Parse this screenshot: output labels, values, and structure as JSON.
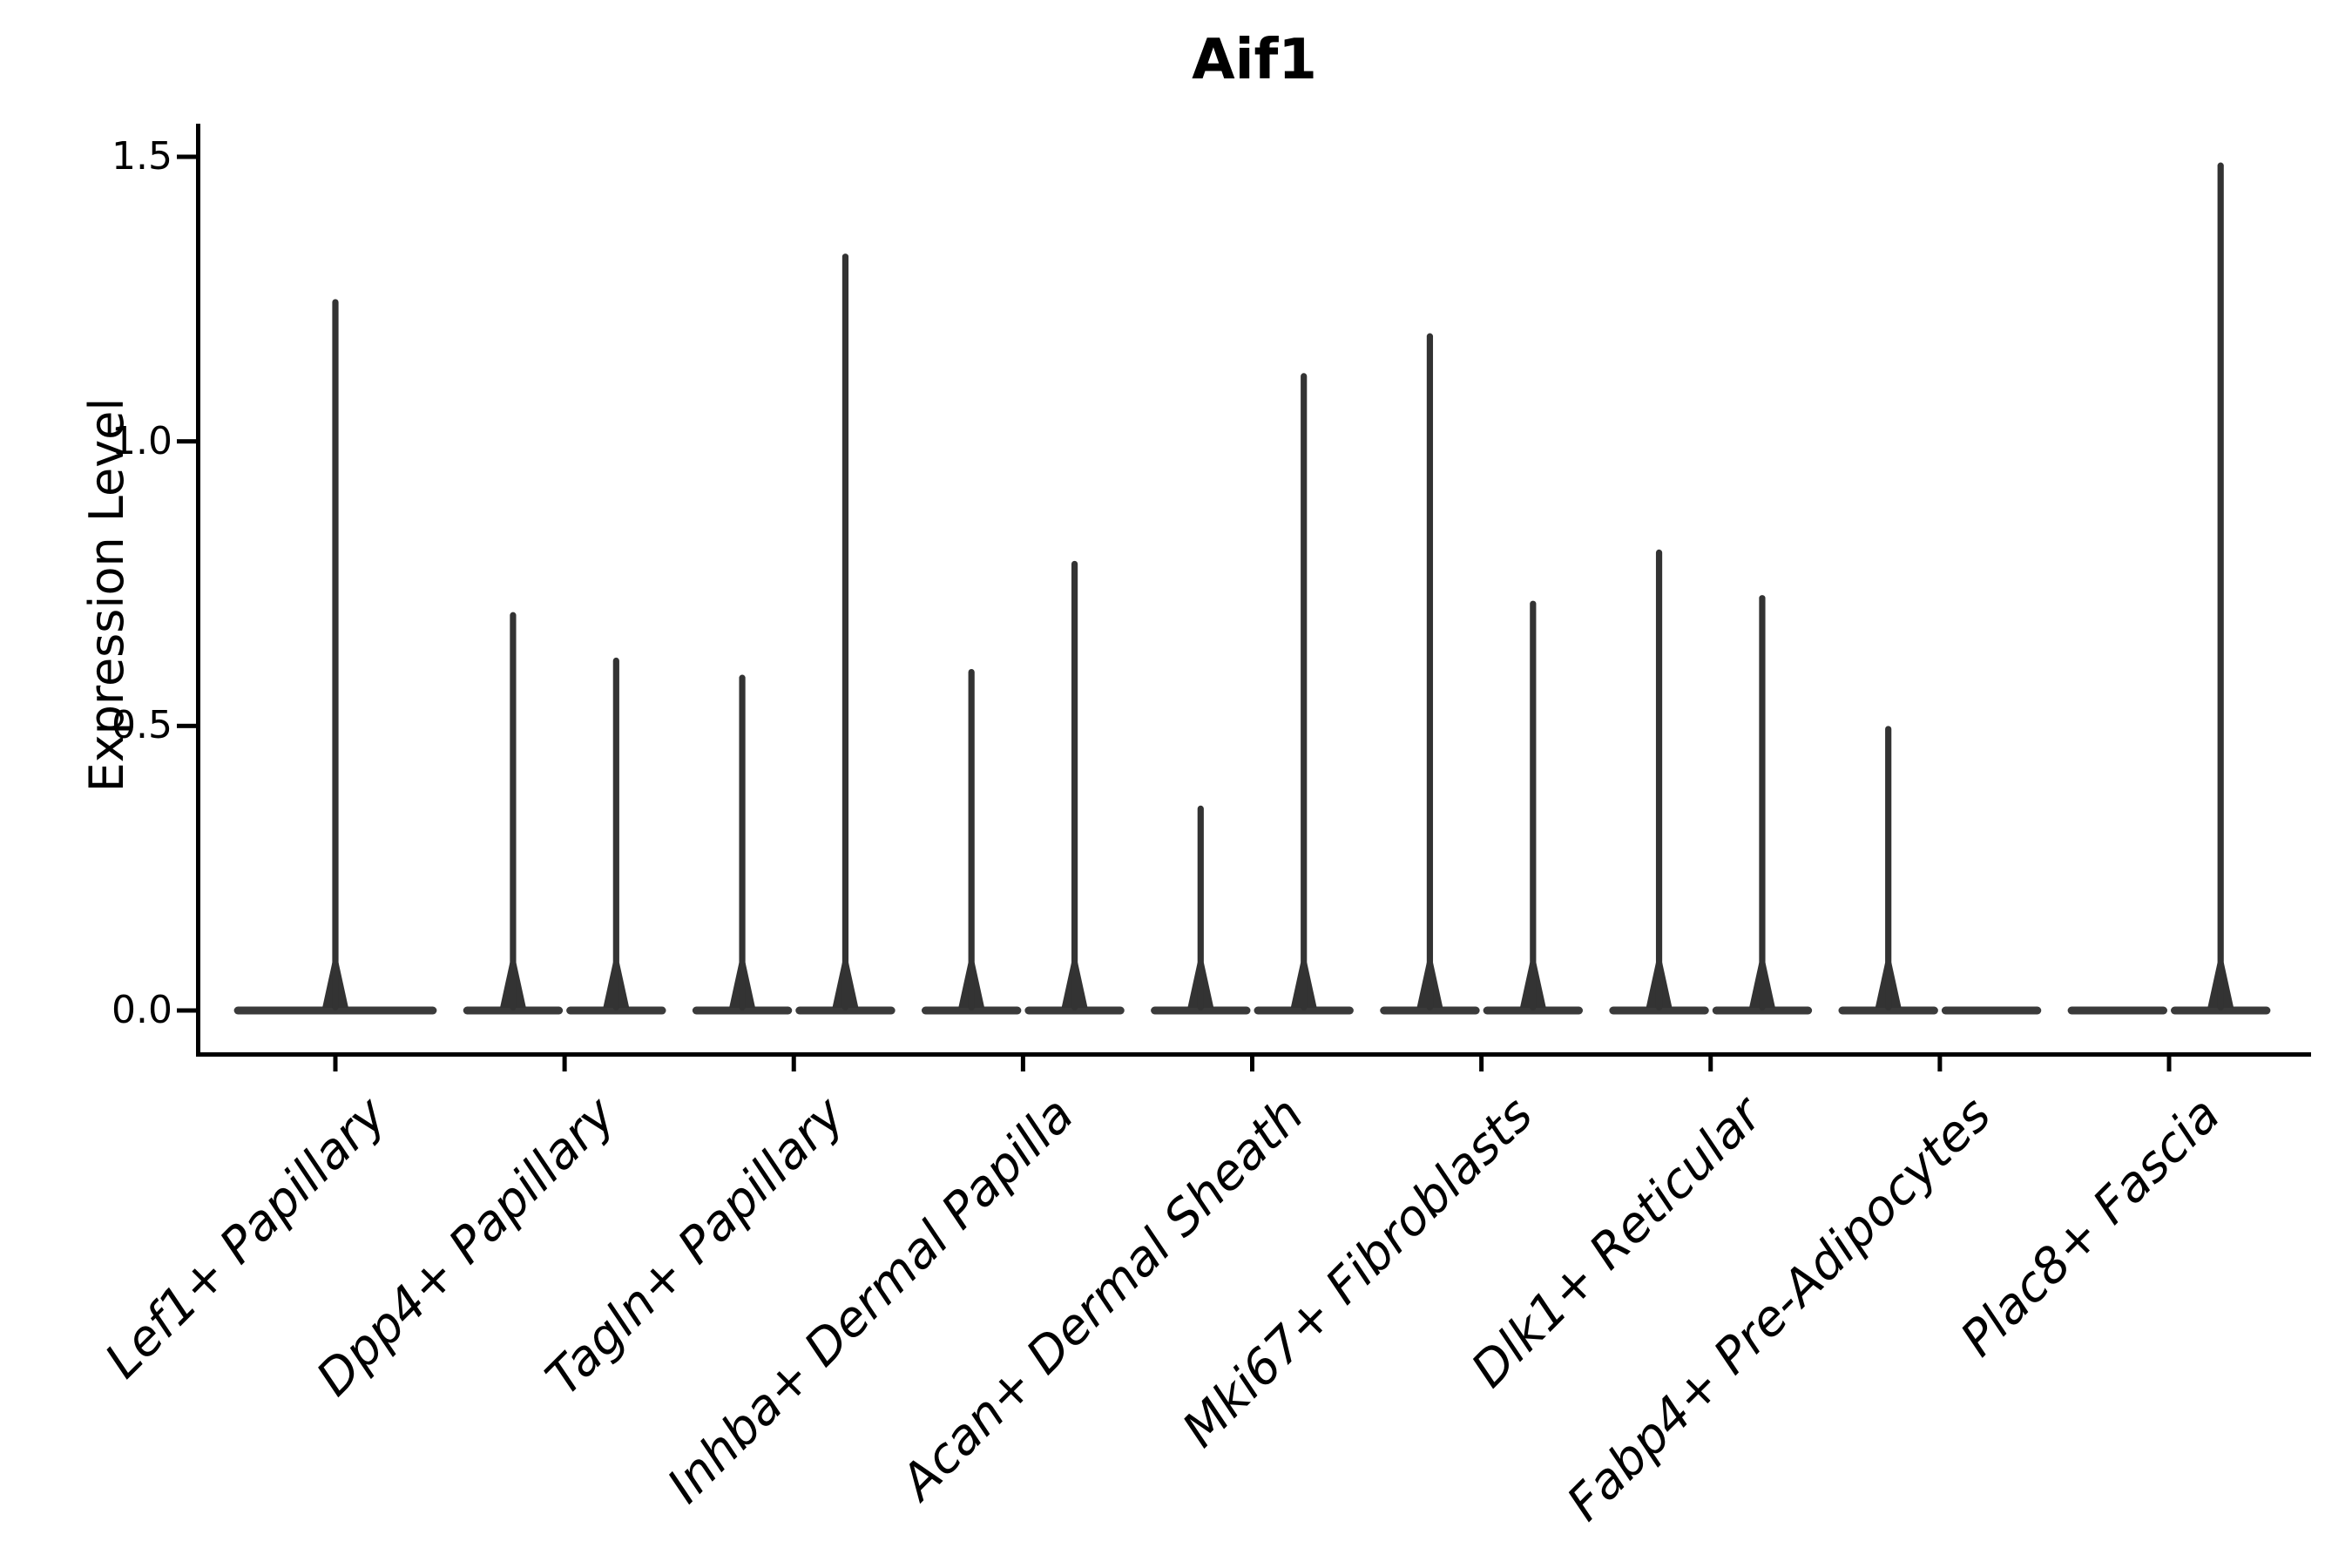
{
  "title": "Aif1",
  "chart_data": {
    "type": "violin",
    "title": "Aif1",
    "ylabel": "Expression Level",
    "xlabel": "",
    "ytick_labels": [
      "0.0",
      "0.5",
      "1.0",
      "1.5"
    ],
    "ytick_values": [
      0.0,
      0.5,
      1.0,
      1.5
    ],
    "ylim": [
      -0.07,
      1.56
    ],
    "grid": false,
    "legend": "none",
    "description": "Split violin plot; each violin is a flat density mass at 0 with a thin spike rising to the maximum expression value",
    "categories": [
      "Lef1+ Papillary",
      "Dpp4+ Papillary",
      "Tagln+ Papillary",
      "Inhba+ Dermal Papilla",
      "Acan+ Dermal Sheath",
      "Mki67+ Fibroblasts",
      "Dlk1+ Reticular",
      "Fabp4+ Pre-Adipocytes",
      "Plac8+ Fascia"
    ],
    "violins": [
      {
        "category": "Lef1+ Papillary",
        "groups": [
          {
            "side": "center",
            "max_expression": 1.25
          }
        ]
      },
      {
        "category": "Dpp4+ Papillary",
        "groups": [
          {
            "side": "left",
            "max_expression": 0.7
          },
          {
            "side": "right",
            "max_expression": 0.62
          }
        ]
      },
      {
        "category": "Tagln+ Papillary",
        "groups": [
          {
            "side": "left",
            "max_expression": 0.59
          },
          {
            "side": "right",
            "max_expression": 1.33
          }
        ]
      },
      {
        "category": "Inhba+ Dermal Papilla",
        "groups": [
          {
            "side": "left",
            "max_expression": 0.6
          },
          {
            "side": "right",
            "max_expression": 0.79
          }
        ]
      },
      {
        "category": "Acan+ Dermal Sheath",
        "groups": [
          {
            "side": "left",
            "max_expression": 0.36
          },
          {
            "side": "right",
            "max_expression": 1.12
          }
        ]
      },
      {
        "category": "Mki67+ Fibroblasts",
        "groups": [
          {
            "side": "left",
            "max_expression": 1.19
          },
          {
            "side": "right",
            "max_expression": 0.72
          }
        ]
      },
      {
        "category": "Dlk1+ Reticular",
        "groups": [
          {
            "side": "left",
            "max_expression": 0.81
          },
          {
            "side": "right",
            "max_expression": 0.73
          }
        ]
      },
      {
        "category": "Fabp4+ Pre-Adipocytes",
        "groups": [
          {
            "side": "left",
            "max_expression": 0.5
          },
          {
            "side": "right",
            "max_expression": 0.0
          }
        ]
      },
      {
        "category": "Plac8+ Fascia",
        "groups": [
          {
            "side": "left",
            "max_expression": 0.0
          },
          {
            "side": "right",
            "max_expression": 1.49
          }
        ]
      }
    ],
    "colors": {
      "violin_spike": "#333333",
      "violin_base": "#3a3a3a",
      "axis": "#000000",
      "text": "#000000",
      "background": "#ffffff"
    }
  }
}
